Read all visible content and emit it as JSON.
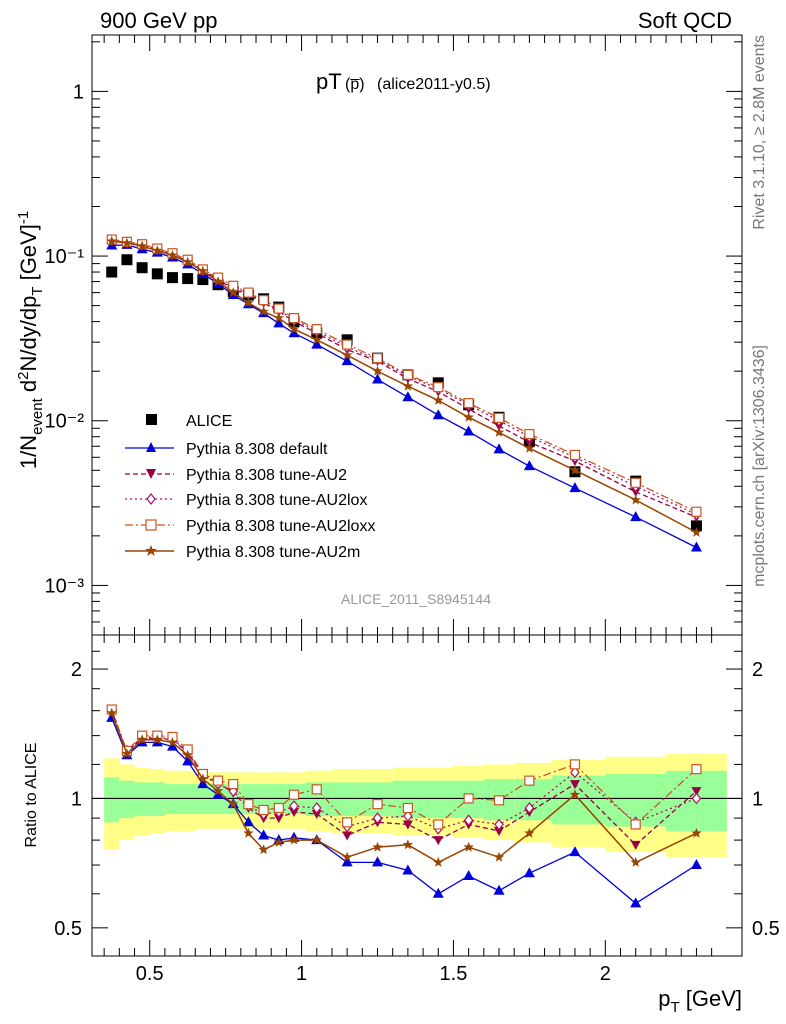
{
  "header": {
    "left": "900 GeV pp",
    "right": "Soft QCD"
  },
  "side_text": {
    "rivet": "Rivet 3.1.10, ≥ 2.8M events",
    "mcplots": "mcplots.cern.ch [arXiv:1306.3436]"
  },
  "watermark": "ALICE_2011_S8945144",
  "plot_title": {
    "main": "pT",
    "paren": "(p̅)",
    "tag": "(alice2011-y0.5)"
  },
  "axes": {
    "ylabel_main": "1/N_event d²N/dy/dp_T [GeV]⁻¹",
    "ylabel_ratio": "Ratio to ALICE",
    "xlabel": "p_T [GeV]",
    "ytick_main": [
      "10⁻³",
      "10⁻²",
      "10⁻¹",
      "1"
    ],
    "ytick_ratio": [
      "0.5",
      "1",
      "2"
    ],
    "xtick": [
      "0.5",
      "1",
      "1.5",
      "2"
    ]
  },
  "colors": {
    "data": "#000000",
    "default": "#0000dd",
    "au2": "#990044",
    "au2lox": "#aa1166",
    "au2loxx": "#cc5522",
    "au2m": "#994400",
    "band_inner": "#99ff99",
    "band_outer": "#ffff88"
  },
  "chart_data": {
    "type": "line",
    "x_scale": "linear",
    "y_scale": "log",
    "xlim": [
      0.31,
      2.45
    ],
    "ylim": [
      0.0005,
      2.2
    ],
    "ratio_ylim": [
      0.43,
      2.4
    ],
    "x": [
      0.375,
      0.425,
      0.475,
      0.525,
      0.575,
      0.625,
      0.675,
      0.725,
      0.775,
      0.825,
      0.875,
      0.925,
      0.975,
      1.05,
      1.15,
      1.25,
      1.35,
      1.45,
      1.55,
      1.65,
      1.75,
      1.9,
      2.1,
      2.3
    ],
    "series": [
      {
        "name": "ALICE",
        "key": "data",
        "values": [
          0.08,
          0.095,
          0.085,
          0.078,
          0.074,
          0.073,
          0.072,
          0.067,
          0.061,
          0.058,
          0.055,
          0.049,
          0.04,
          0.034,
          0.031,
          0.024,
          0.019,
          0.017,
          0.0125,
          0.0105,
          0.0075,
          0.0049,
          0.0043,
          0.0023
        ]
      },
      {
        "name": "Pythia 8.308 default",
        "key": "default",
        "values": [
          0.116,
          0.117,
          0.11,
          0.105,
          0.098,
          0.089,
          0.078,
          0.068,
          0.058,
          0.051,
          0.045,
          0.039,
          0.034,
          0.029,
          0.023,
          0.0178,
          0.0139,
          0.0108,
          0.0086,
          0.0067,
          0.0053,
          0.0039,
          0.0026,
          0.0017
        ]
      },
      {
        "name": "Pythia 8.308 tune-AU2",
        "key": "au2",
        "values": [
          0.124,
          0.121,
          0.116,
          0.11,
          0.103,
          0.093,
          0.081,
          0.072,
          0.063,
          0.058,
          0.052,
          0.046,
          0.04,
          0.034,
          0.027,
          0.023,
          0.018,
          0.015,
          0.0118,
          0.0093,
          0.0074,
          0.0057,
          0.0037,
          0.0026
        ]
      },
      {
        "name": "Pythia 8.308 tune-AU2lox",
        "key": "au2lox",
        "values": [
          0.125,
          0.121,
          0.117,
          0.11,
          0.103,
          0.094,
          0.082,
          0.073,
          0.064,
          0.059,
          0.053,
          0.047,
          0.041,
          0.035,
          0.028,
          0.0235,
          0.0187,
          0.0156,
          0.0125,
          0.01,
          0.008,
          0.006,
          0.004,
          0.0027
        ]
      },
      {
        "name": "Pythia 8.308 tune-AU2loxx",
        "key": "au2loxx",
        "values": [
          0.126,
          0.122,
          0.118,
          0.111,
          0.104,
          0.095,
          0.083,
          0.074,
          0.066,
          0.06,
          0.054,
          0.048,
          0.042,
          0.036,
          0.029,
          0.024,
          0.019,
          0.016,
          0.0128,
          0.0104,
          0.0083,
          0.0062,
          0.0042,
          0.0028
        ]
      },
      {
        "name": "Pythia 8.308 tune-AU2m",
        "key": "au2m",
        "values": [
          0.123,
          0.12,
          0.115,
          0.108,
          0.101,
          0.092,
          0.081,
          0.07,
          0.06,
          0.052,
          0.046,
          0.042,
          0.036,
          0.031,
          0.025,
          0.02,
          0.0162,
          0.0133,
          0.0105,
          0.0085,
          0.0068,
          0.005,
          0.0033,
          0.0021
        ]
      }
    ],
    "ratio_series": [
      {
        "key": "default",
        "values": [
          1.54,
          1.26,
          1.35,
          1.35,
          1.32,
          1.22,
          1.08,
          1.02,
          0.97,
          0.88,
          0.82,
          0.8,
          0.81,
          0.8,
          0.71,
          0.71,
          0.68,
          0.6,
          0.66,
          0.61,
          0.67,
          0.75,
          0.57,
          0.7
        ]
      },
      {
        "key": "au2",
        "values": [
          1.6,
          1.28,
          1.38,
          1.38,
          1.37,
          1.28,
          1.13,
          1.09,
          1.03,
          0.95,
          0.9,
          0.9,
          0.93,
          0.92,
          0.82,
          0.88,
          0.87,
          0.8,
          0.87,
          0.84,
          0.93,
          1.08,
          0.78,
          1.04
        ]
      },
      {
        "key": "au2lox",
        "values": [
          1.6,
          1.29,
          1.39,
          1.39,
          1.37,
          1.29,
          1.13,
          1.08,
          1.04,
          0.96,
          0.92,
          0.93,
          0.96,
          0.95,
          0.86,
          0.9,
          0.91,
          0.85,
          0.89,
          0.87,
          0.95,
          1.15,
          0.88,
          1.0
        ]
      },
      {
        "key": "au2loxx",
        "values": [
          1.61,
          1.29,
          1.4,
          1.4,
          1.39,
          1.3,
          1.14,
          1.1,
          1.08,
          0.97,
          0.94,
          0.95,
          1.02,
          1.05,
          0.88,
          0.97,
          0.95,
          0.87,
          1.0,
          0.99,
          1.1,
          1.2,
          0.87,
          1.17
        ]
      },
      {
        "key": "au2m",
        "values": [
          1.58,
          1.27,
          1.37,
          1.37,
          1.35,
          1.26,
          1.11,
          1.04,
          0.97,
          0.83,
          0.76,
          0.79,
          0.8,
          0.8,
          0.73,
          0.77,
          0.78,
          0.71,
          0.77,
          0.73,
          0.83,
          1.02,
          0.71,
          0.83
        ]
      }
    ],
    "ratio_band": {
      "inner": [
        0.12,
        0.1,
        0.09,
        0.09,
        0.08,
        0.08,
        0.08,
        0.08,
        0.08,
        0.08,
        0.08,
        0.08,
        0.08,
        0.09,
        0.09,
        0.09,
        0.1,
        0.1,
        0.1,
        0.11,
        0.11,
        0.13,
        0.14,
        0.16
      ],
      "outer": [
        0.24,
        0.2,
        0.18,
        0.17,
        0.16,
        0.16,
        0.15,
        0.15,
        0.15,
        0.15,
        0.15,
        0.15,
        0.15,
        0.16,
        0.17,
        0.17,
        0.18,
        0.18,
        0.19,
        0.2,
        0.21,
        0.23,
        0.25,
        0.27
      ]
    },
    "legend_position": "bottom-left"
  }
}
